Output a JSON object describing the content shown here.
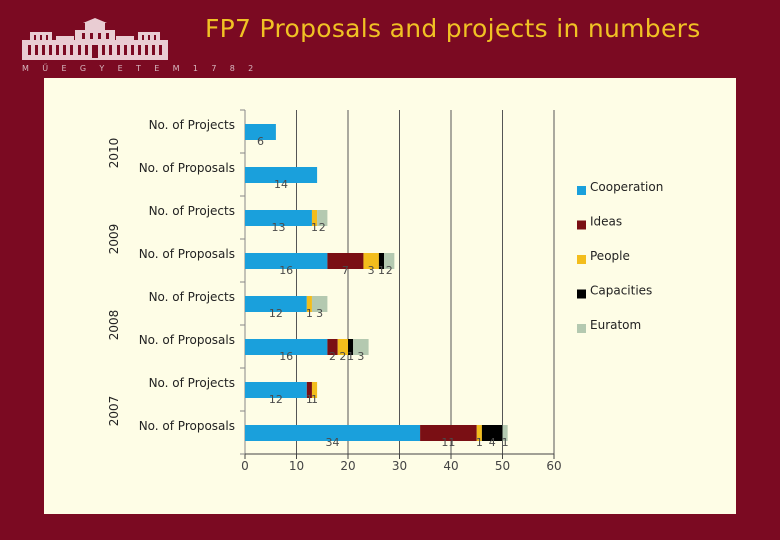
{
  "slide": {
    "title": "FP7 Proposals and projects in numbers",
    "logo_text": "M Ű E G Y E T E M   1 7 8 2"
  },
  "colors": {
    "background": "#7b0a22",
    "title": "#f0c224",
    "panel": "#fefde6"
  },
  "chart_data": {
    "type": "bar",
    "orientation": "horizontal",
    "stacked": true,
    "xlim": [
      0,
      60
    ],
    "xticks": [
      0,
      10,
      20,
      30,
      40,
      50,
      60
    ],
    "grid": "vertical",
    "legend_position": "right",
    "groups": [
      {
        "label": "2010",
        "rows": [
          "No. of Projects",
          "No. of Proposals"
        ]
      },
      {
        "label": "2009",
        "rows": [
          "No. of Projects",
          "No. of Proposals"
        ]
      },
      {
        "label": "2008",
        "rows": [
          "No. of Projects",
          "No. of Proposals"
        ]
      },
      {
        "label": "2007",
        "rows": [
          "No. of Projects",
          "No. of Proposals"
        ]
      }
    ],
    "categories": [
      "No. of Projects",
      "No. of Proposals",
      "No. of Projects",
      "No. of Proposals",
      "No. of Projects",
      "No. of Proposals",
      "No. of Projects",
      "No. of Proposals"
    ],
    "series": [
      {
        "name": "Cooperation",
        "color": "#1aa0dc",
        "values": [
          6,
          14,
          13,
          16,
          12,
          16,
          12,
          34
        ]
      },
      {
        "name": "Ideas",
        "color": "#7a0f14",
        "values": [
          0,
          0,
          0,
          7,
          0,
          2,
          1,
          11
        ]
      },
      {
        "name": "People",
        "color": "#f3bd1c",
        "values": [
          0,
          0,
          1,
          3,
          1,
          2,
          1,
          1
        ]
      },
      {
        "name": "Capacities",
        "color": "#000000",
        "values": [
          0,
          0,
          0,
          1,
          0,
          1,
          0,
          4
        ]
      },
      {
        "name": "Euratom",
        "color": "#b4c9b0",
        "values": [
          0,
          0,
          2,
          2,
          3,
          3,
          0,
          1
        ]
      }
    ]
  }
}
